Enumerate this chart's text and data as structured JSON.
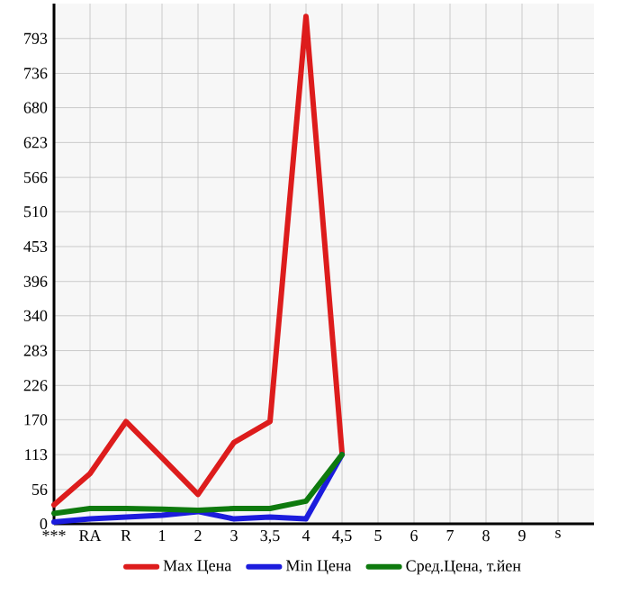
{
  "chart_data": {
    "type": "line",
    "categories": [
      "***",
      "RA",
      "R",
      "1",
      "2",
      "3",
      "3,5",
      "4",
      "4,5",
      "5",
      "6",
      "7",
      "8",
      "9",
      "s"
    ],
    "series": [
      {
        "name": "Max Цена",
        "color": "#dd1c1c",
        "values": [
          31,
          82,
          167,
          108,
          48,
          133,
          167,
          829,
          116,
          null,
          null,
          null,
          null,
          null,
          null
        ]
      },
      {
        "name": "Min Цена",
        "color": "#1c1cdd",
        "values": [
          3,
          8,
          11,
          14,
          20,
          8,
          11,
          8,
          113,
          null,
          null,
          null,
          null,
          null,
          null
        ]
      },
      {
        "name": "Сред.Цена, т.йен",
        "color": "#0e7a0e",
        "values": [
          17,
          25,
          25,
          24,
          22,
          25,
          25,
          37,
          113,
          null,
          null,
          null,
          null,
          null,
          null
        ]
      }
    ],
    "ylim": [
      0,
      850
    ],
    "yticks": [
      0,
      56,
      113,
      170,
      226,
      283,
      340,
      396,
      453,
      510,
      566,
      623,
      680,
      736,
      793
    ],
    "grid": true,
    "legend": "bottom",
    "marker": "none",
    "line_style": "solid"
  }
}
